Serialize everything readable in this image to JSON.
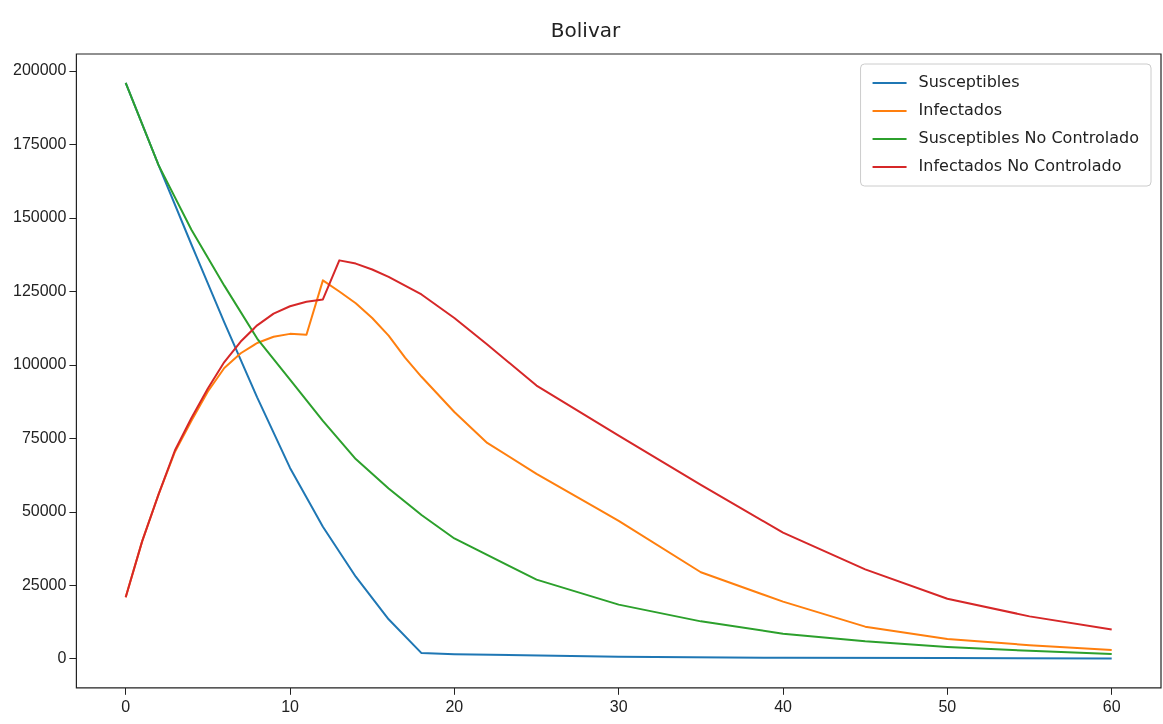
{
  "chart_data": {
    "type": "line",
    "title": "Bolivar",
    "xlim": [
      -3,
      63
    ],
    "xticks": [
      0,
      10,
      20,
      30,
      40,
      50,
      60
    ],
    "ylim": [
      -9800,
      205800
    ],
    "yticks": [
      0,
      25000,
      50000,
      75000,
      100000,
      125000,
      150000,
      175000,
      200000
    ],
    "grid": false,
    "legend": "top right",
    "marker": "none",
    "line_style": "solid",
    "series": [
      {
        "name": "Susceptibles",
        "color": "#1f77b4",
        "x": [
          0,
          2,
          4,
          6,
          8,
          10,
          12,
          14,
          16,
          18,
          20,
          30,
          40,
          50,
          60
        ],
        "values": [
          196000,
          168000,
          141000,
          114500,
          89000,
          65000,
          45000,
          28000,
          13500,
          2000,
          1600,
          800,
          400,
          300,
          200
        ]
      },
      {
        "name": "Infectados",
        "color": "#ff7f0e",
        "x": [
          0,
          1,
          2,
          3,
          4,
          5,
          6,
          7,
          8,
          9,
          10,
          11,
          12,
          13,
          14,
          15,
          16,
          17,
          18,
          20,
          22,
          25,
          30,
          35,
          40,
          45,
          50,
          55,
          60
        ],
        "values": [
          21000,
          40000,
          56000,
          70500,
          81000,
          91000,
          99000,
          104000,
          107500,
          109600,
          110600,
          110300,
          128800,
          125000,
          121000,
          116000,
          110000,
          102500,
          96000,
          84000,
          73500,
          63000,
          47000,
          29500,
          19500,
          11000,
          6800,
          4700,
          3100
        ]
      },
      {
        "name": "Susceptibles No Controlado",
        "color": "#2ca02c",
        "x": [
          0,
          2,
          4,
          6,
          8,
          10,
          12,
          14,
          16,
          18,
          20,
          25,
          30,
          35,
          40,
          45,
          50,
          55,
          60
        ],
        "values": [
          196000,
          168000,
          146000,
          127000,
          109000,
          95000,
          81000,
          68000,
          58000,
          49000,
          41000,
          27000,
          18500,
          12800,
          8600,
          6000,
          4100,
          2800,
          1700
        ]
      },
      {
        "name": "Infectados No Controlado",
        "color": "#d62728",
        "x": [
          0,
          1,
          2,
          3,
          4,
          5,
          6,
          7,
          8,
          9,
          10,
          11,
          12,
          13,
          14,
          15,
          16,
          18,
          20,
          22,
          25,
          30,
          35,
          40,
          45,
          50,
          55,
          60
        ],
        "values": [
          21000,
          40000,
          56000,
          71000,
          82000,
          92000,
          101000,
          108000,
          113500,
          117500,
          120000,
          121500,
          122300,
          135600,
          134500,
          132500,
          130000,
          124000,
          116000,
          107000,
          93000,
          76000,
          59200,
          43000,
          30500,
          20500,
          14500,
          10000
        ]
      }
    ]
  }
}
